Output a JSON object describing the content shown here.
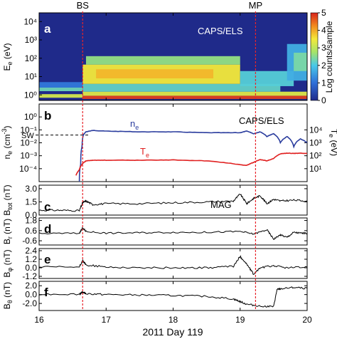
{
  "chart_data": [
    {
      "type": "heatmap",
      "panel": "a",
      "instrument_label": "CAPS/ELS",
      "ylabel": "E_e (eV)",
      "y_scale": "log",
      "ylim": [
        0.5,
        30000
      ],
      "yticks": [
        {
          "v": 1,
          "t": "10⁰"
        },
        {
          "v": 10,
          "t": "10¹"
        },
        {
          "v": 100,
          "t": "10²"
        },
        {
          "v": 1000,
          "t": "10³"
        },
        {
          "v": 10000,
          "t": "10⁴"
        }
      ],
      "colorbar": {
        "label": "Log counts/sample",
        "ticks": [
          "0",
          "1",
          "2",
          "3",
          "4",
          "5"
        ],
        "range": [
          0,
          5
        ]
      },
      "bands": [
        {
          "x": [
            16.0,
            16.65
          ],
          "ylo": 0.7,
          "yhi": 1.1,
          "level": 3.2
        },
        {
          "x": [
            16.0,
            16.65
          ],
          "ylo": 1.6,
          "yhi": 2.5,
          "level": 2.3
        },
        {
          "x": [
            16.0,
            16.65
          ],
          "ylo": 2.5,
          "yhi": 5,
          "level": 1.1
        },
        {
          "x": [
            16.65,
            20.0
          ],
          "ylo": 0.6,
          "yhi": 0.9,
          "level": 4.8
        },
        {
          "x": [
            16.65,
            20.0
          ],
          "ylo": 0.9,
          "yhi": 1.5,
          "level": 3.3
        },
        {
          "x": [
            16.65,
            19.6
          ],
          "ylo": 1.5,
          "yhi": 4,
          "level": 2.2
        },
        {
          "x": [
            16.65,
            19.0
          ],
          "ylo": 4,
          "yhi": 45,
          "level": 3.5
        },
        {
          "x": [
            16.85,
            18.6
          ],
          "ylo": 8,
          "yhi": 25,
          "level": 3.9
        },
        {
          "x": [
            16.7,
            19.0
          ],
          "ylo": 45,
          "yhi": 130,
          "level": 2.6
        },
        {
          "x": [
            19.0,
            19.8
          ],
          "ylo": 3,
          "yhi": 20,
          "level": 2.1
        },
        {
          "x": [
            19.7,
            20.0
          ],
          "ylo": 6,
          "yhi": 600,
          "level": 1.7
        },
        {
          "x": [
            19.8,
            20.0
          ],
          "ylo": 20,
          "yhi": 200,
          "level": 2.4
        }
      ]
    },
    {
      "type": "line",
      "panel": "b",
      "instrument_label": "CAPS/ELS",
      "ylabel": "n_e (cm⁻³)",
      "y2label": "T_e (eV)",
      "y_scale": "log",
      "ylim": [
        1e-05,
        10
      ],
      "yticks": [
        {
          "v": 0.0001,
          "t": "10⁻⁴"
        },
        {
          "v": 0.001,
          "t": "10⁻³"
        },
        {
          "v": 0.01,
          "t": "10⁻²"
        },
        {
          "v": 0.1,
          "t": "10⁻¹"
        },
        {
          "v": 1,
          "t": "10⁰"
        }
      ],
      "y2lim": [
        1,
        1000000
      ],
      "y2ticks": [
        {
          "v": 10,
          "t": "10¹"
        },
        {
          "v": 100,
          "t": "10²"
        },
        {
          "v": 1000,
          "t": "10³"
        },
        {
          "v": 10000,
          "t": "10⁴"
        }
      ],
      "annotation": "SW",
      "annotation_y": 0.04,
      "series": [
        {
          "name": "n_e",
          "color": "#2b3d9e",
          "axis": "left",
          "x": [
            16.6,
            16.62,
            16.64,
            16.66,
            16.7,
            16.8,
            17.0,
            17.5,
            18.0,
            18.5,
            19.0,
            19.1,
            19.2,
            19.3,
            19.4,
            19.5,
            19.6,
            19.7,
            19.8,
            19.9,
            20.0
          ],
          "y": [
            1e-05,
            0.0002,
            0.005,
            0.04,
            0.07,
            0.09,
            0.08,
            0.07,
            0.07,
            0.06,
            0.06,
            0.08,
            0.05,
            0.07,
            0.03,
            0.05,
            0.01,
            0.03,
            0.005,
            0.02,
            0.01
          ]
        },
        {
          "name": "T_e",
          "color": "#e02020",
          "axis": "right",
          "x": [
            16.55,
            16.6,
            16.65,
            16.7,
            16.8,
            17.0,
            17.5,
            18.0,
            18.5,
            19.0,
            19.1,
            19.2,
            19.3,
            19.4,
            19.5,
            19.6,
            19.7,
            19.8,
            19.9,
            20.0
          ],
          "y": [
            3,
            8,
            25,
            40,
            45,
            45,
            45,
            48,
            40,
            20,
            18,
            30,
            50,
            40,
            60,
            140,
            160,
            150,
            160,
            150
          ]
        }
      ]
    },
    {
      "type": "line",
      "panel": "c",
      "instrument_label": "MAG",
      "ylabel": "B_tot (nT)",
      "ylim": [
        0.0,
        3.4
      ],
      "yticks": [
        "0.0",
        "1.5",
        "3.0"
      ],
      "series": [
        {
          "name": "B_tot",
          "x": [
            16.0,
            16.3,
            16.6,
            16.65,
            16.7,
            16.8,
            17.0,
            17.5,
            18.0,
            18.5,
            18.9,
            19.0,
            19.1,
            19.2,
            19.3,
            19.4,
            19.5,
            19.6,
            19.8,
            20.0
          ],
          "y": [
            0.55,
            0.55,
            0.5,
            1.4,
            1.6,
            1.2,
            1.3,
            1.3,
            1.4,
            1.5,
            1.6,
            2.4,
            1.3,
            1.9,
            2.2,
            1.3,
            1.8,
            1.6,
            1.7,
            1.6
          ]
        }
      ]
    },
    {
      "type": "line",
      "panel": "d",
      "ylabel": "B_r (nT)",
      "ylim": [
        -1.1,
        2.1
      ],
      "yticks": [
        "-0.6",
        "0.6",
        "1.8"
      ],
      "series": [
        {
          "name": "B_r",
          "x": [
            16.0,
            16.6,
            16.65,
            16.7,
            17.0,
            17.5,
            18.0,
            18.5,
            19.0,
            19.2,
            19.4,
            19.5,
            19.6,
            19.7,
            19.8,
            19.9,
            20.0
          ],
          "y": [
            0.25,
            0.3,
            0.9,
            0.5,
            0.3,
            0.35,
            0.4,
            0.4,
            0.5,
            0.2,
            0.7,
            -0.4,
            0.1,
            -0.2,
            0.4,
            0.3,
            0.3
          ]
        }
      ]
    },
    {
      "type": "line",
      "panel": "e",
      "ylabel": "B_φ (nT)",
      "ylim": [
        -1.5,
        2.7
      ],
      "yticks": [
        "-1.2",
        "0.0",
        "1.2",
        "2.4"
      ],
      "series": [
        {
          "name": "B_phi",
          "x": [
            16.0,
            16.6,
            16.65,
            16.7,
            17.0,
            17.5,
            18.0,
            18.5,
            18.9,
            19.0,
            19.1,
            19.2,
            19.3,
            19.5,
            19.7,
            20.0
          ],
          "y": [
            0.1,
            0.1,
            1.0,
            0.4,
            0.1,
            0.0,
            0.0,
            0.0,
            0.2,
            1.6,
            0.5,
            -0.9,
            0.0,
            0.3,
            0.0,
            0.1
          ]
        }
      ]
    },
    {
      "type": "line",
      "panel": "f",
      "ylabel": "B_θ (nT)",
      "ylim": [
        -3.6,
        3.0
      ],
      "yticks": [
        "-2.0",
        "0.0",
        "2.0"
      ],
      "series": [
        {
          "name": "B_theta",
          "x": [
            16.0,
            16.6,
            16.65,
            16.7,
            17.0,
            17.5,
            18.0,
            18.5,
            18.9,
            19.0,
            19.1,
            19.3,
            19.5,
            19.55,
            19.6,
            19.8,
            20.0
          ],
          "y": [
            0.1,
            0.1,
            0.6,
            0.2,
            0.0,
            -0.1,
            -0.2,
            -0.4,
            -1.0,
            -1.6,
            -2.2,
            -2.6,
            -2.7,
            1.1,
            1.3,
            1.6,
            1.4
          ]
        }
      ]
    }
  ],
  "x_axis": {
    "xlim": [
      16,
      20
    ],
    "ticks": [
      "16",
      "17",
      "18",
      "19",
      "20"
    ],
    "label": "2011  Day 119"
  },
  "markers": [
    {
      "label": "BS",
      "x": 16.65,
      "color": "#e8232a"
    },
    {
      "label": "MP",
      "x": 19.23,
      "color": "#e8232a"
    }
  ]
}
